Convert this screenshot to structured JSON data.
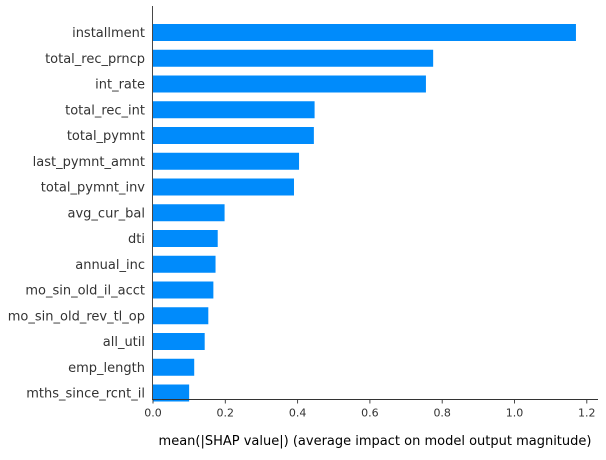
{
  "chart_data": {
    "type": "bar",
    "orientation": "horizontal",
    "categories": [
      "installment",
      "total_rec_prncp",
      "int_rate",
      "total_rec_int",
      "total_pymnt",
      "last_pymnt_amnt",
      "total_pymnt_inv",
      "avg_cur_bal",
      "dti",
      "annual_inc",
      "mo_sin_old_il_acct",
      "mo_sin_old_rev_tl_op",
      "all_util",
      "emp_length",
      "mths_since_rcnt_il"
    ],
    "values": [
      1.17,
      0.775,
      0.755,
      0.447,
      0.445,
      0.404,
      0.39,
      0.198,
      0.179,
      0.173,
      0.167,
      0.153,
      0.143,
      0.114,
      0.1
    ],
    "title": "",
    "xlabel": "mean(|SHAP value|) (average impact on model output magnitude)",
    "ylabel": "",
    "xlim": [
      0,
      1.23
    ],
    "xticks": [
      0,
      0.2,
      0.4,
      0.6,
      0.8,
      1.0,
      1.2
    ],
    "xtick_labels": [
      "0.0",
      "0.2",
      "0.4",
      "0.6",
      "0.8",
      "1.0",
      "1.2"
    ],
    "bar_color": "#008bfb",
    "grid": false,
    "legend": "none"
  }
}
